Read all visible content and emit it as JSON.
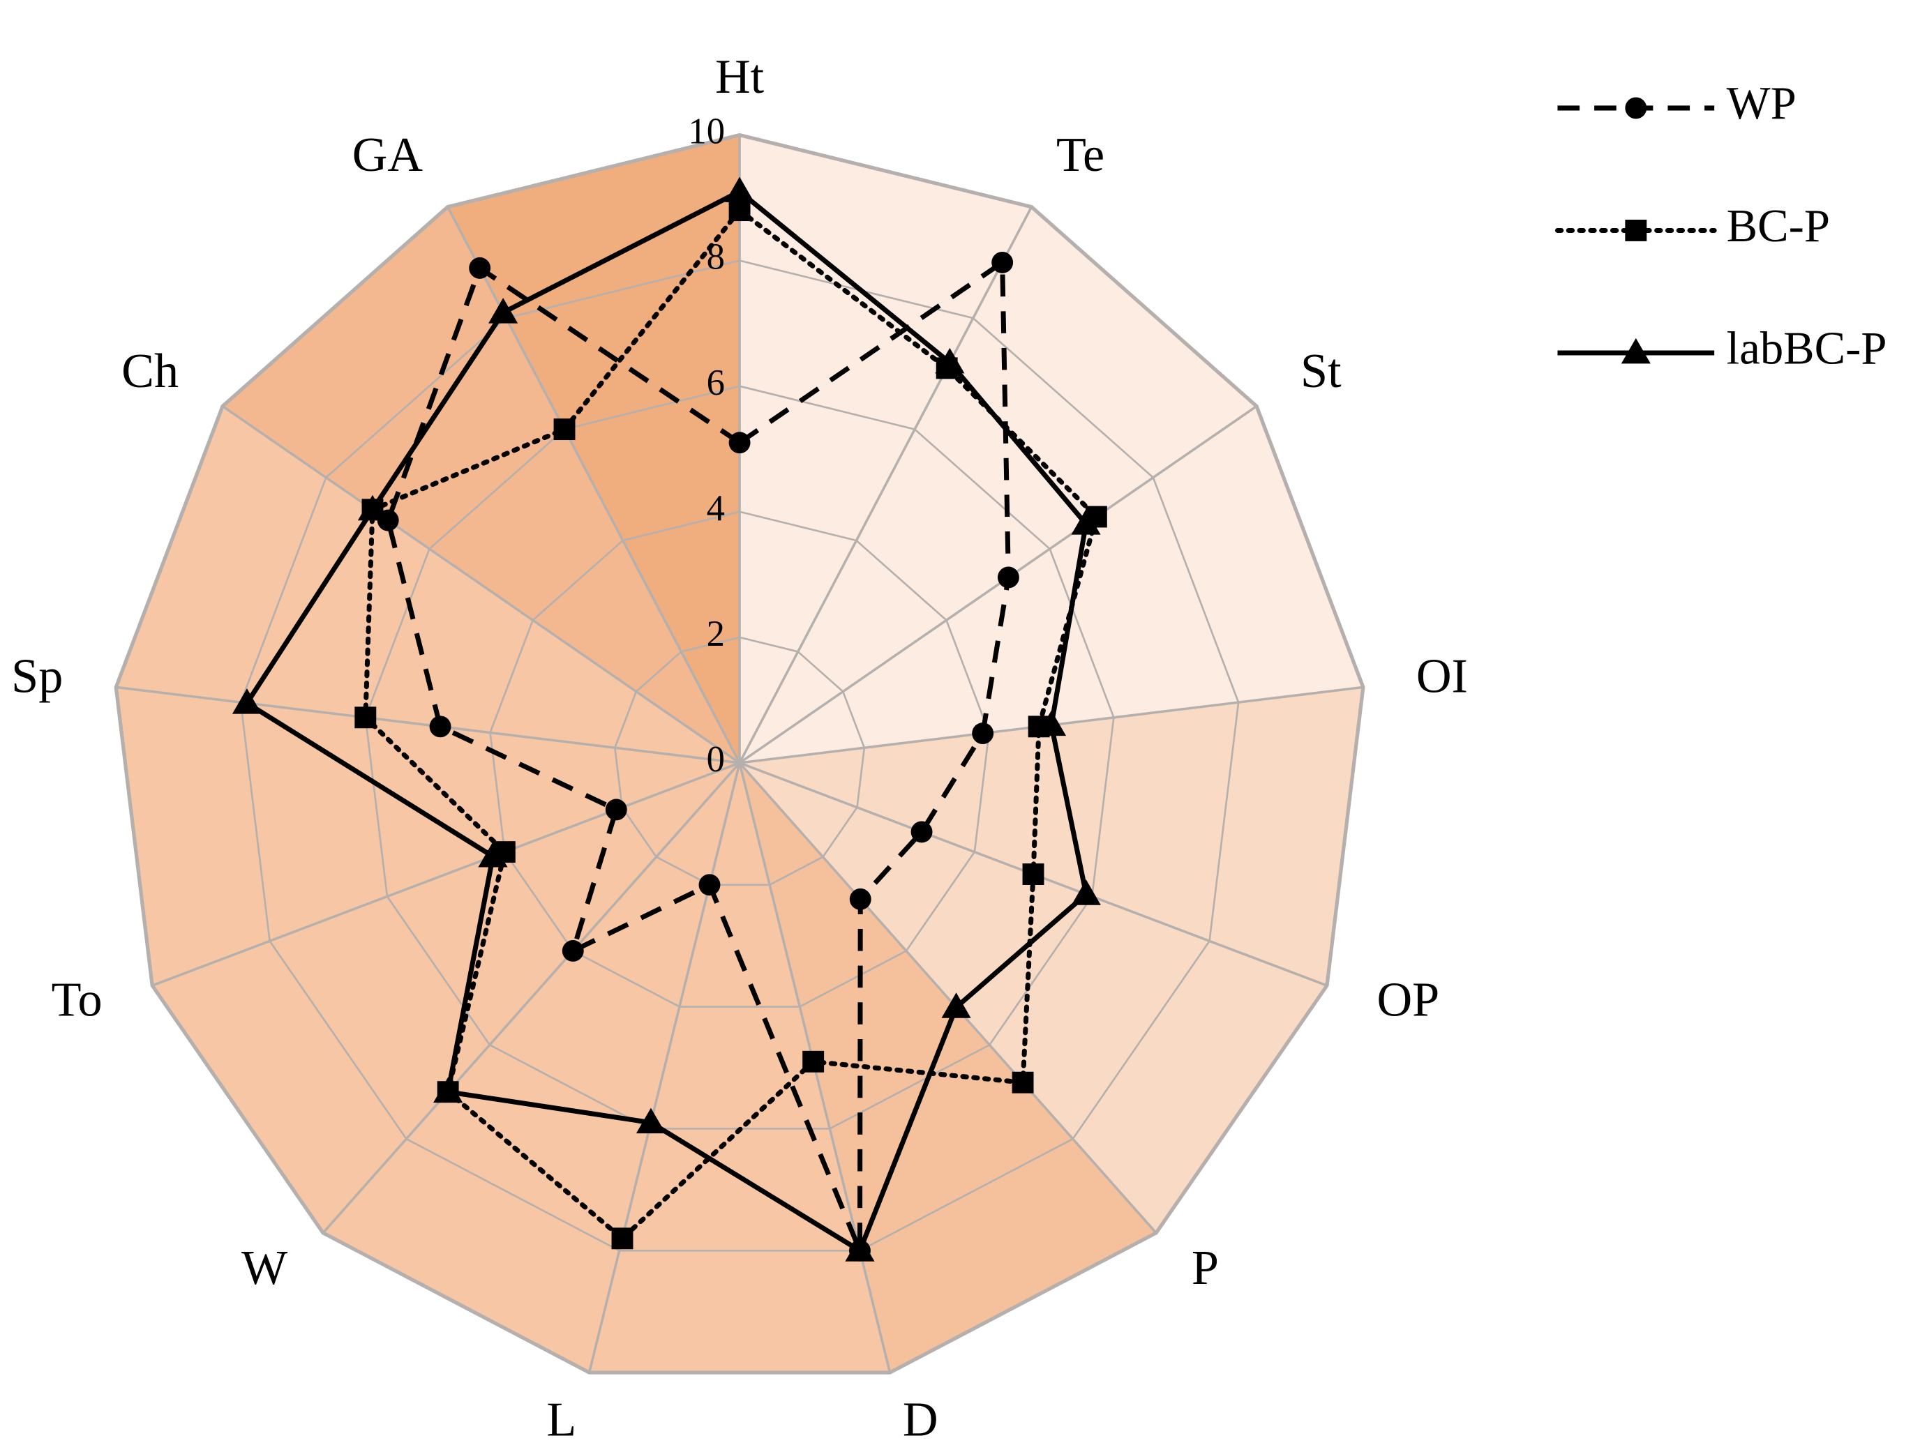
{
  "chart_data": {
    "type": "radar",
    "categories": [
      "Ht",
      "Te",
      "St",
      "OI",
      "OP",
      "P",
      "D",
      "L",
      "W",
      "To",
      "Sp",
      "Ch",
      "GA"
    ],
    "ylim": [
      0,
      10
    ],
    "yticks": [
      0,
      2,
      4,
      6,
      8,
      10
    ],
    "series": [
      {
        "name": "WP",
        "color": "#000000",
        "dash": "dashed",
        "marker": "circle",
        "values": [
          5.1,
          9.0,
          5.2,
          3.9,
          3.1,
          2.9,
          8.0,
          2.0,
          4.0,
          2.1,
          4.8,
          6.8,
          8.9
        ]
      },
      {
        "name": "BC-P",
        "color": "#000000",
        "dash": "dotted",
        "marker": "square",
        "values": [
          8.8,
          7.1,
          6.9,
          4.8,
          5.0,
          6.8,
          4.9,
          7.8,
          7.0,
          4.0,
          6.0,
          7.1,
          6.0
        ]
      },
      {
        "name": "labBC-P",
        "color": "#000000",
        "dash": "solid",
        "marker": "triangle",
        "values": [
          9.1,
          7.2,
          6.7,
          5.0,
          5.9,
          5.2,
          8.0,
          5.9,
          7.0,
          4.2,
          7.9,
          7.1,
          8.1
        ]
      }
    ]
  }
}
